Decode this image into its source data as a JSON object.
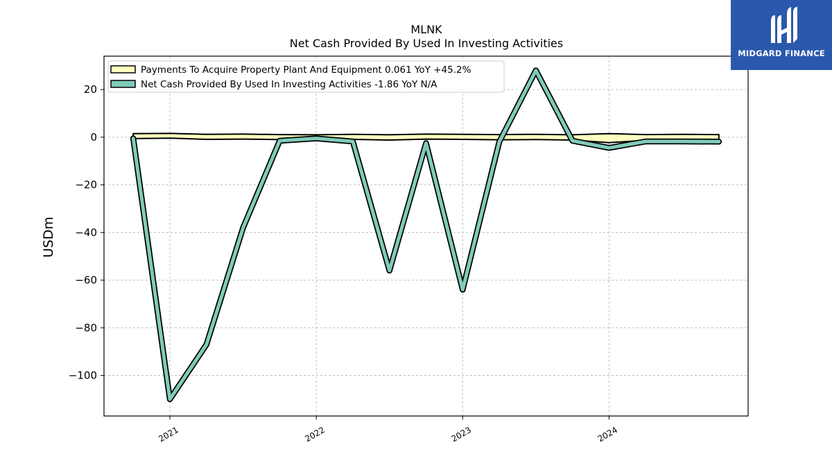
{
  "logo": {
    "text": "MIDGARD FINANCE",
    "bg_color": "#2b58ad"
  },
  "chart_data": {
    "type": "line",
    "title": "MLNK",
    "subtitle": "Net Cash Provided By Used In Investing Activities",
    "xlabel": "",
    "ylabel": "USDm",
    "ylim": [
      -117,
      34
    ],
    "xlim": [
      2020.55,
      2024.95
    ],
    "x_ticks": [
      2021,
      2022,
      2023,
      2024
    ],
    "x_tick_labels": [
      "2021",
      "2022",
      "2023",
      "2024"
    ],
    "y_ticks": [
      20,
      0,
      -20,
      -40,
      -60,
      -80,
      -100
    ],
    "y_tick_labels": [
      "20",
      "0",
      "−20",
      "−40",
      "−60",
      "−80",
      "−100"
    ],
    "grid": true,
    "legend_position": "top-left",
    "x": [
      2020.75,
      2021.0,
      2021.25,
      2021.5,
      2021.75,
      2022.0,
      2022.25,
      2022.5,
      2022.75,
      2023.0,
      2023.25,
      2023.5,
      2023.75,
      2024.0,
      2024.25,
      2024.5,
      2024.75
    ],
    "series": [
      {
        "name": "Payments To Acquire Property Plant And Equipment",
        "legend_label": "Payments To Acquire Property Plant And Equipment  0.061 YoY +45.2%",
        "color": "#ffffc0",
        "style": "band",
        "upper": [
          1.5,
          1.6,
          1.2,
          1.3,
          1.1,
          1.0,
          1.2,
          1.0,
          1.3,
          1.2,
          1.1,
          1.2,
          1.0,
          1.5,
          1.1,
          1.2,
          1.1
        ],
        "lower": [
          -0.6,
          -0.4,
          -0.9,
          -0.8,
          -1.0,
          -1.1,
          -0.9,
          -1.2,
          -0.8,
          -0.9,
          -1.1,
          -1.0,
          -1.2,
          -2.3,
          -1.3,
          -1.3,
          -2.8
        ]
      },
      {
        "name": "Net Cash Provided By Used In Investing Activities",
        "legend_label": "Net Cash Provided By Used In Investing Activities  -1.86 YoY N/A",
        "color": "#7fcbb9",
        "style": "line",
        "values": [
          -0.5,
          -110,
          -87,
          -38,
          -1.5,
          -0.5,
          -1.8,
          -56,
          -2.5,
          -64,
          -2.0,
          28,
          -1.5,
          -4.5,
          -1.8,
          -1.8,
          -1.86
        ]
      }
    ]
  }
}
